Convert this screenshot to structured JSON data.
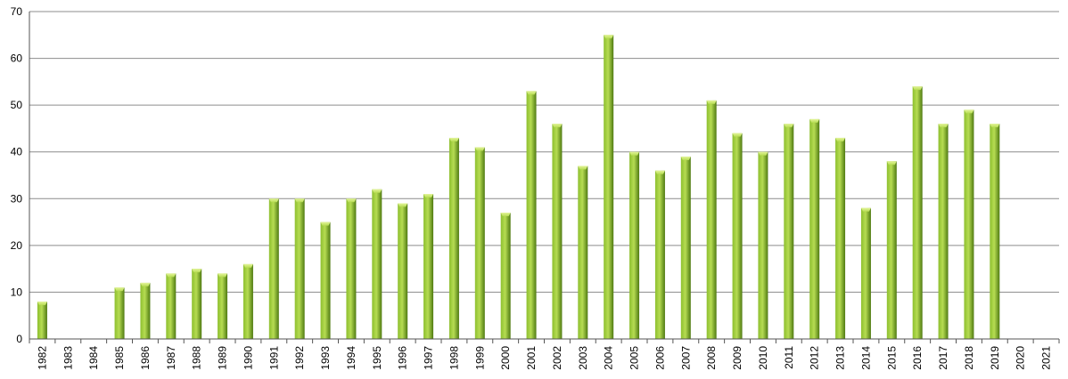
{
  "chart_data": {
    "type": "bar",
    "categories": [
      "1982",
      "1983",
      "1984",
      "1985",
      "1986",
      "1987",
      "1988",
      "1989",
      "1990",
      "1991",
      "1992",
      "1993",
      "1994",
      "1995",
      "1996",
      "1997",
      "1998",
      "1999",
      "2000",
      "2001",
      "2002",
      "2003",
      "2004",
      "2005",
      "2006",
      "2007",
      "2008",
      "2009",
      "2010",
      "2011",
      "2012",
      "2013",
      "2014",
      "2015",
      "2016",
      "2017",
      "2018",
      "2019",
      "2020",
      "2021"
    ],
    "values": [
      8,
      0,
      0,
      11,
      12,
      14,
      15,
      14,
      16,
      30,
      30,
      25,
      30,
      32,
      29,
      31,
      43,
      41,
      27,
      53,
      46,
      37,
      65,
      40,
      36,
      39,
      51,
      44,
      40,
      46,
      47,
      43,
      28,
      38,
      54,
      46,
      49,
      46,
      0,
      0
    ],
    "ylim": [
      0,
      70
    ],
    "yticks": [
      0,
      10,
      20,
      30,
      40,
      50,
      60,
      70
    ],
    "grid": true,
    "title": "",
    "xlabel": "",
    "ylabel": "",
    "colors": {
      "bar_light": "#b6dc52",
      "bar_mid": "#8dbf2f",
      "bar_dark": "#4f7a12",
      "grid": "#8c8c8c",
      "axis": "#555555"
    }
  }
}
